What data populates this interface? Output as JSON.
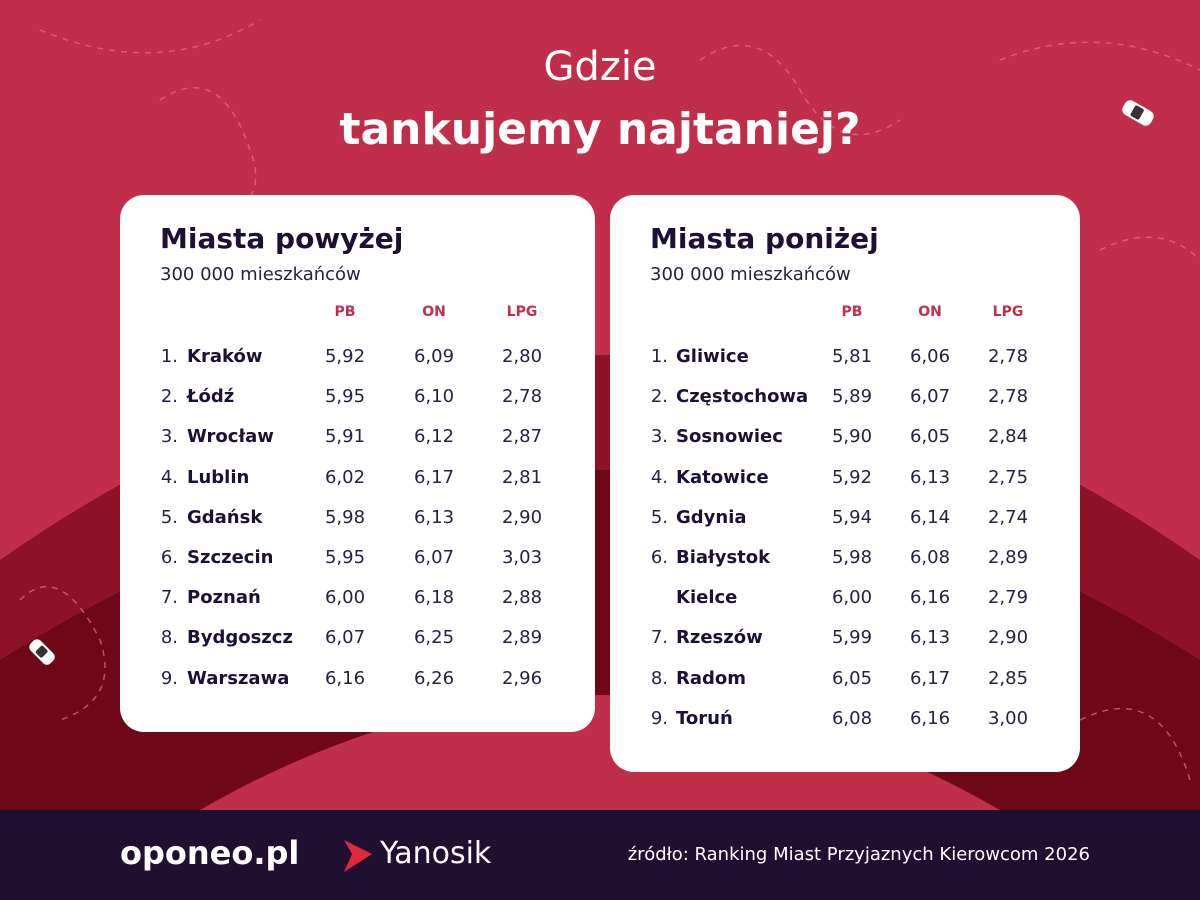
{
  "header": {
    "line1": "Gdzie",
    "line2": "tankujemy najtaniej?"
  },
  "tables": [
    {
      "title": "Miasta powyżej",
      "subtitle": "300 000 mieszkańców",
      "columns": [
        "PB",
        "ON",
        "LPG"
      ],
      "rows": [
        {
          "rank": "1.",
          "city": "Kraków",
          "values": [
            "5,92",
            "6,09",
            "2,80"
          ]
        },
        {
          "rank": "2.",
          "city": "Łódź",
          "values": [
            "5,95",
            "6,10",
            "2,78"
          ]
        },
        {
          "rank": "3.",
          "city": "Wrocław",
          "values": [
            "5,91",
            "6,12",
            "2,87"
          ]
        },
        {
          "rank": "4.",
          "city": "Lublin",
          "values": [
            "6,02",
            "6,17",
            "2,81"
          ]
        },
        {
          "rank": "5.",
          "city": "Gdańsk",
          "values": [
            "5,98",
            "6,13",
            "2,90"
          ]
        },
        {
          "rank": "6.",
          "city": "Szczecin",
          "values": [
            "5,95",
            "6,07",
            "3,03"
          ]
        },
        {
          "rank": "7.",
          "city": "Poznań",
          "values": [
            "6,00",
            "6,18",
            "2,88"
          ]
        },
        {
          "rank": "8.",
          "city": "Bydgoszcz",
          "values": [
            "6,07",
            "6,25",
            "2,89"
          ]
        },
        {
          "rank": "9.",
          "city": "Warszawa",
          "values": [
            "6,16",
            "6,26",
            "2,96"
          ]
        }
      ]
    },
    {
      "title": "Miasta poniżej",
      "subtitle": "300 000 mieszkańców",
      "columns": [
        "PB",
        "ON",
        "LPG"
      ],
      "rows": [
        {
          "rank": "1.",
          "city": "Gliwice",
          "values": [
            "5,81",
            "6,06",
            "2,78"
          ]
        },
        {
          "rank": "2.",
          "city": "Częstochowa",
          "values": [
            "5,89",
            "6,07",
            "2,78"
          ]
        },
        {
          "rank": "3.",
          "city": "Sosnowiec",
          "values": [
            "5,90",
            "6,05",
            "2,84"
          ]
        },
        {
          "rank": "4.",
          "city": "Katowice",
          "values": [
            "5,92",
            "6,13",
            "2,75"
          ]
        },
        {
          "rank": "5.",
          "city": "Gdynia",
          "values": [
            "5,94",
            "6,14",
            "2,74"
          ]
        },
        {
          "rank": "6.",
          "city": "Białystok",
          "values": [
            "5,98",
            "6,08",
            "2,89"
          ]
        },
        {
          "rank": null,
          "city": "Kielce",
          "values": [
            "6,00",
            "6,16",
            "2,79"
          ]
        },
        {
          "rank": "7.",
          "city": "Rzeszów",
          "values": [
            "5,99",
            "6,13",
            "2,90"
          ]
        },
        {
          "rank": "8.",
          "city": "Radom",
          "values": [
            "6,05",
            "6,17",
            "2,85"
          ]
        },
        {
          "rank": "9.",
          "city": "Toruń",
          "values": [
            "6,08",
            "6,16",
            "3,00"
          ]
        }
      ]
    }
  ],
  "footer": {
    "logos": [
      "oponeo.pl",
      "Yanosik"
    ],
    "source": "źródło: Ranking Miast Przyjaznych Kierowcom 2026"
  }
}
